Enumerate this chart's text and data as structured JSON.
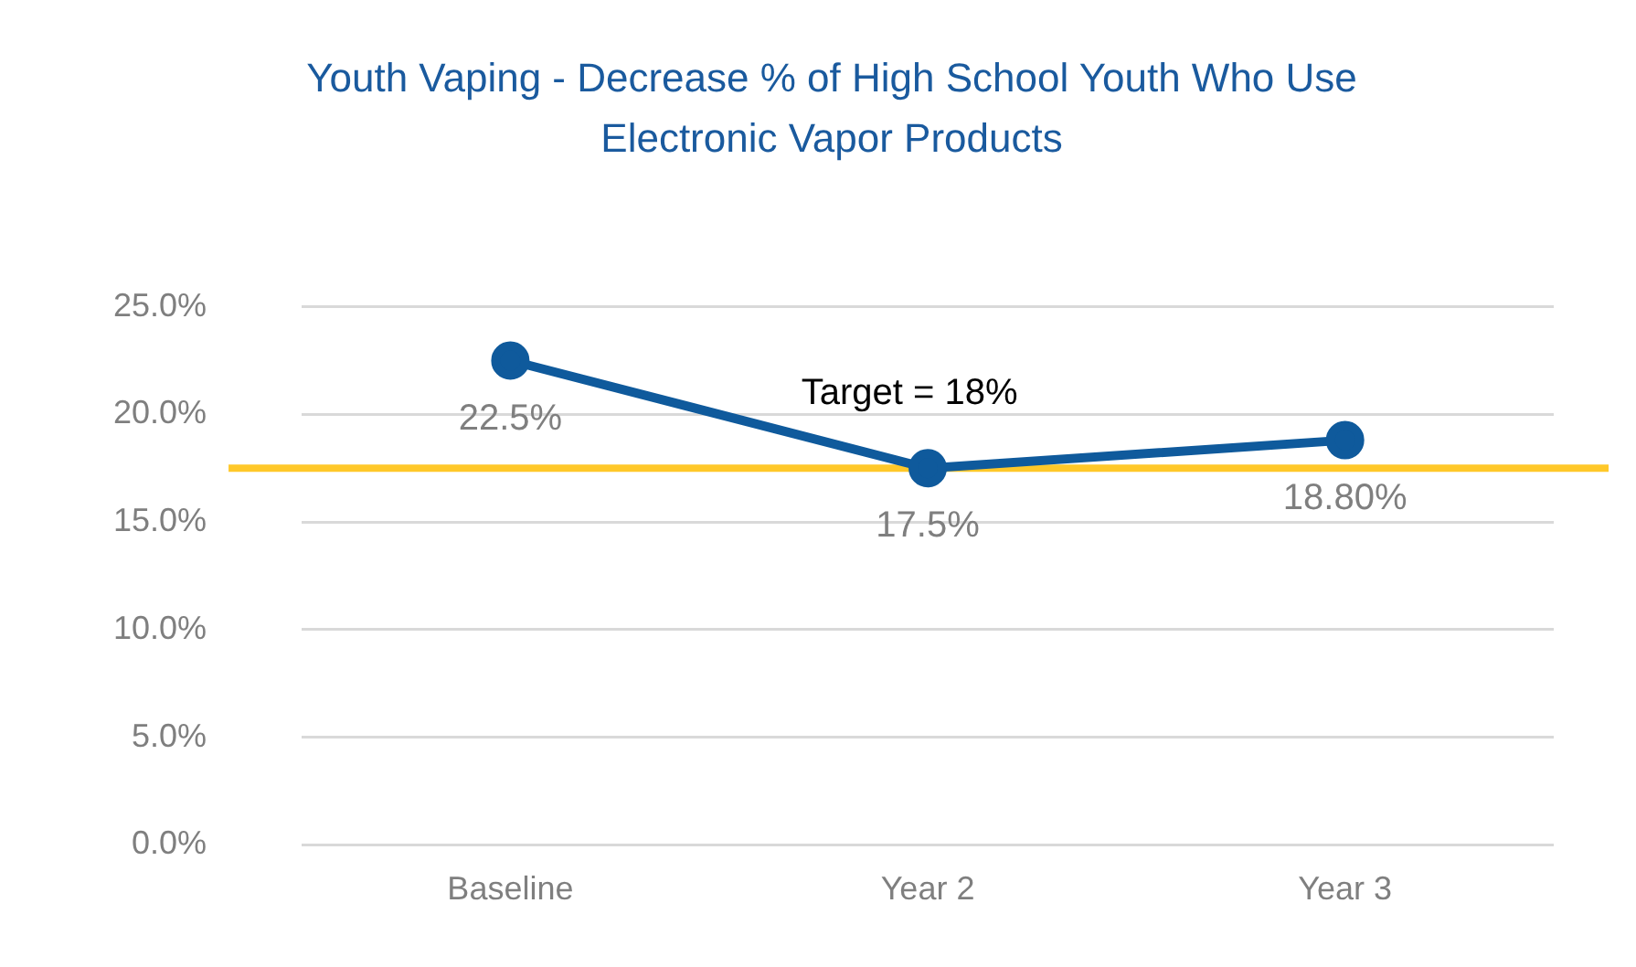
{
  "chart_data": {
    "type": "line",
    "title": "Youth Vaping - Decrease % of High School Youth Who Use Electronic Vapor Products",
    "categories": [
      "Baseline",
      "Year 2",
      "Year 3"
    ],
    "series": [
      {
        "color": "#0f5a9c",
        "values": [
          22.5,
          17.5,
          18.8
        ],
        "value_labels": [
          "22.5%",
          "17.5%",
          "18.80%"
        ]
      }
    ],
    "ylim": [
      0,
      25
    ],
    "yticks": [
      {
        "value": 0,
        "label": "0.0%"
      },
      {
        "value": 5,
        "label": "5.0%"
      },
      {
        "value": 10,
        "label": "10.0%"
      },
      {
        "value": 15,
        "label": "15.0%"
      },
      {
        "value": 20,
        "label": "20.0%"
      },
      {
        "value": 25,
        "label": "25.0%"
      }
    ],
    "ref_lines": [
      {
        "axis": "y",
        "value": 17.5,
        "label": "Target = 18%",
        "color": "#ffc829"
      }
    ],
    "grid": "y",
    "legend": false,
    "marker": "circle",
    "line_style": "solid"
  }
}
